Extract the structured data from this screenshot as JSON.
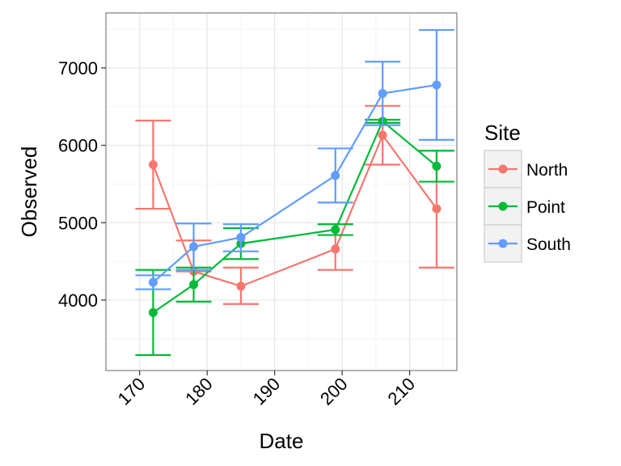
{
  "chart_data": {
    "type": "line",
    "xlabel": "Date",
    "ylabel": "Observed",
    "xlim": [
      165,
      217
    ],
    "ylim": [
      3090,
      7710
    ],
    "x_ticks": [
      170,
      180,
      190,
      200,
      210
    ],
    "x_tick_labels": [
      "170",
      "180",
      "190",
      "200",
      "210"
    ],
    "x_minor_ticks": [
      175,
      185,
      195,
      205,
      215
    ],
    "y_ticks": [
      4000,
      5000,
      6000,
      7000
    ],
    "y_tick_labels": [
      "4000",
      "5000",
      "6000",
      "7000"
    ],
    "y_minor_ticks": [
      3500,
      4500,
      5500,
      6500,
      7500
    ],
    "grid": true,
    "legend": {
      "title": "Site",
      "position": "right"
    },
    "series": [
      {
        "name": "North",
        "color": "#F8766D",
        "x": [
          172,
          178,
          185,
          199,
          206,
          214
        ],
        "y": [
          5750,
          4370,
          4180,
          4660,
          6130,
          5180
        ],
        "ymin": [
          5180,
          4370,
          3950,
          4390,
          5750,
          4420
        ],
        "ymax": [
          6320,
          4770,
          4420,
          4980,
          6510,
          5930
        ]
      },
      {
        "name": "Point",
        "color": "#00BA38",
        "x": [
          172,
          178,
          185,
          199,
          206,
          214
        ],
        "y": [
          3840,
          4200,
          4730,
          4910,
          6310,
          5730
        ],
        "ymin": [
          3290,
          3980,
          4530,
          4840,
          6290,
          5530
        ],
        "ymax": [
          4390,
          4420,
          4930,
          4980,
          6330,
          5930
        ]
      },
      {
        "name": "South",
        "color": "#619CFF",
        "x": [
          172,
          178,
          185,
          199,
          206,
          214
        ],
        "y": [
          4230,
          4690,
          4810,
          5610,
          6670,
          6780
        ],
        "ymin": [
          4140,
          4390,
          4630,
          5260,
          6260,
          6070
        ],
        "ymax": [
          4320,
          4990,
          4980,
          5960,
          7080,
          7490
        ]
      }
    ]
  }
}
